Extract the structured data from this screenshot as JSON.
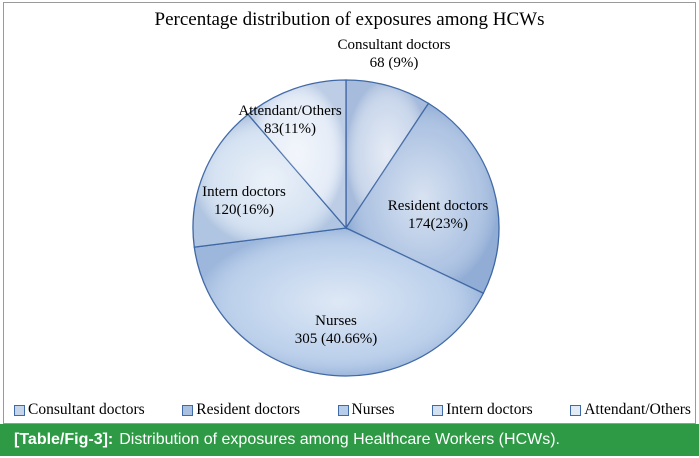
{
  "figure": {
    "caption_label": "[Table/Fig-3]:",
    "caption_text": "Distribution of exposures among Healthcare Workers (HCWs)."
  },
  "chart_data": {
    "type": "pie",
    "title": "Percentage distribution of exposures among HCWs",
    "legend_position": "bottom",
    "slices": [
      {
        "label": "Consultant doctors",
        "value": 68,
        "percent_label": "68 (9%)",
        "color": "#c6d4ea"
      },
      {
        "label": "Resident doctors",
        "value": 174,
        "percent_label": "174(23%)",
        "color": "#a9c0e1"
      },
      {
        "label": "Nurses",
        "value": 305,
        "percent_label": "305 (40.66%)",
        "color": "#b7cdea"
      },
      {
        "label": "Intern doctors",
        "value": 120,
        "percent_label": "120(16%)",
        "color": "#d2e0f1"
      },
      {
        "label": "Attendant/Others",
        "value": 83,
        "percent_label": "83(11%)",
        "color": "#e3ebf7"
      }
    ]
  }
}
